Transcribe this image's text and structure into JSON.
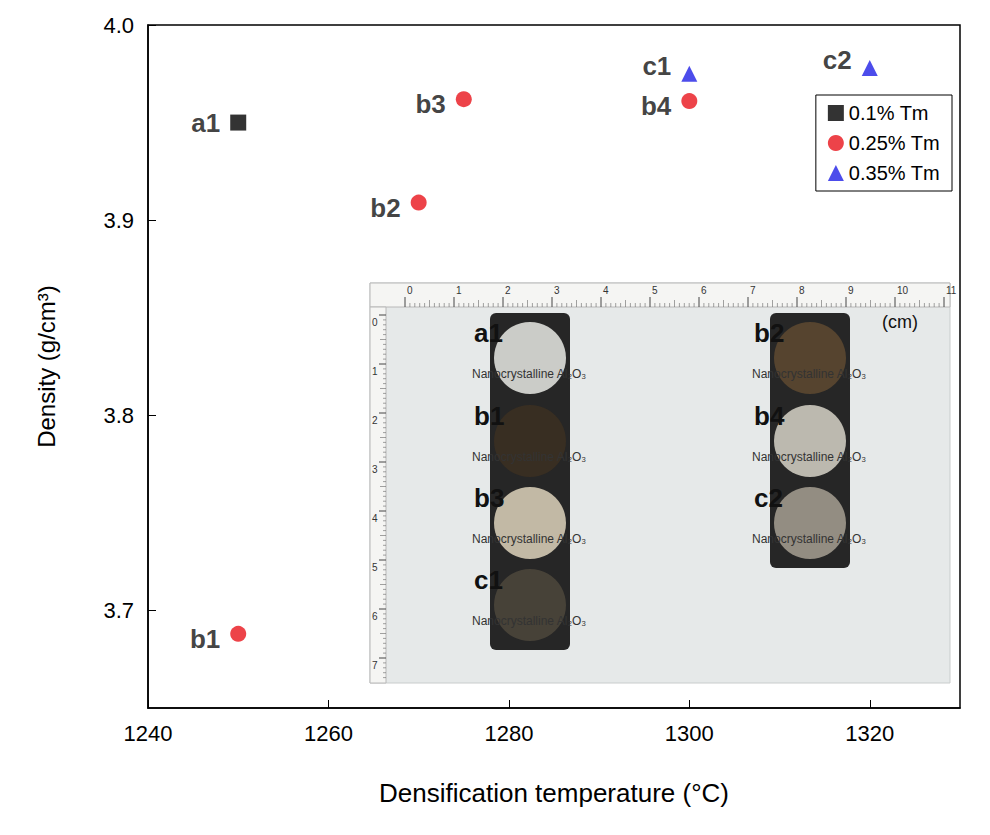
{
  "chart_data": {
    "type": "scatter",
    "xlabel": "Densification temperature (°C)",
    "ylabel": "Density (g/cm³)",
    "xlim": [
      1240,
      1330
    ],
    "xticks": [
      1240,
      1260,
      1280,
      1300,
      1320
    ],
    "ylim": [
      3.65,
      4.0
    ],
    "yticks": [
      3.7,
      3.8,
      3.9,
      {
        "value": 4.0,
        "label": "4.0"
      }
    ],
    "grid": false,
    "legend": "upper right",
    "series": [
      {
        "name": "0.1% Tm",
        "color": "#000000",
        "marker": "square",
        "x": [
          1250
        ],
        "values": [
          3.95
        ],
        "point_labels": [
          "a1"
        ]
      },
      {
        "name": "0.25% Tm",
        "color": "#e8141c",
        "marker": "circle",
        "x": [
          1250,
          1270,
          1275,
          1300
        ],
        "values": [
          3.688,
          3.909,
          3.962,
          3.961
        ],
        "point_labels": [
          "b1",
          "b2",
          "b3",
          "b4"
        ]
      },
      {
        "name": "0.35% Tm",
        "color": "#1f1fe6",
        "marker": "triangle",
        "x": [
          1300,
          1320
        ],
        "values": [
          3.975,
          3.978
        ],
        "point_labels": [
          "c1",
          "c2"
        ]
      }
    ],
    "inset": {
      "type": "photo",
      "ruler_unit": "(cm)",
      "ruler_x_ticks": [
        0,
        1,
        2,
        3,
        4,
        5,
        6,
        7,
        8,
        9,
        10,
        11
      ],
      "ruler_y_ticks": [
        0,
        1,
        2,
        3,
        4,
        5,
        6,
        7
      ],
      "caption": "Nanocrystalline Al₂O₃",
      "columns": [
        [
          "a1",
          "b1",
          "b3",
          "c1"
        ],
        [
          "b2",
          "b4",
          "c2"
        ]
      ]
    }
  }
}
